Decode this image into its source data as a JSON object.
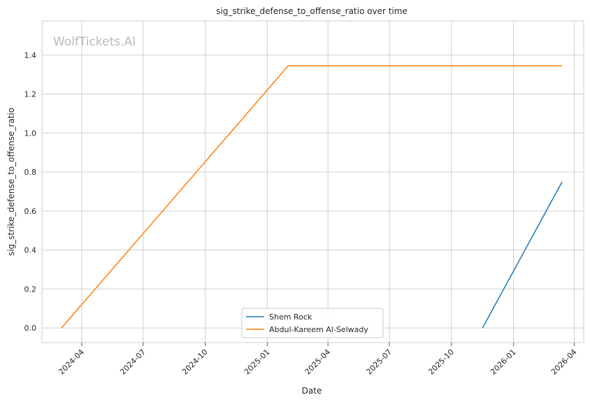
{
  "chart_data": {
    "type": "line",
    "title": "sig_strike_defense_to_offense_ratio over time",
    "xlabel": "Date",
    "ylabel": "sig_strike_defense_to_offense_ratio",
    "watermark": "WolfTickets.AI",
    "x_ticks": [
      "2024-04",
      "2024-07",
      "2024-10",
      "2025-01",
      "2025-04",
      "2025-07",
      "2025-10",
      "2026-01",
      "2026-04"
    ],
    "y_ticks": [
      "0.0",
      "0.2",
      "0.4",
      "0.6",
      "0.8",
      "1.0",
      "1.2",
      "1.4"
    ],
    "xlim": [
      "2024-02-02",
      "2026-04-15"
    ],
    "ylim": [
      -0.075,
      1.575
    ],
    "grid": true,
    "legend_position": "bottom-center",
    "series": [
      {
        "name": "Shem Rock",
        "color": "#1f77b4",
        "points": [
          {
            "x": "2025-11-16",
            "y": 0.0
          },
          {
            "x": "2026-03-14",
            "y": 0.75
          }
        ]
      },
      {
        "name": "Abdul-Kareem Al-Selwady",
        "color": "#ff7f0e",
        "points": [
          {
            "x": "2024-03-02",
            "y": 0.0
          },
          {
            "x": "2025-02-01",
            "y": 1.345
          },
          {
            "x": "2026-03-14",
            "y": 1.345
          }
        ]
      }
    ]
  }
}
